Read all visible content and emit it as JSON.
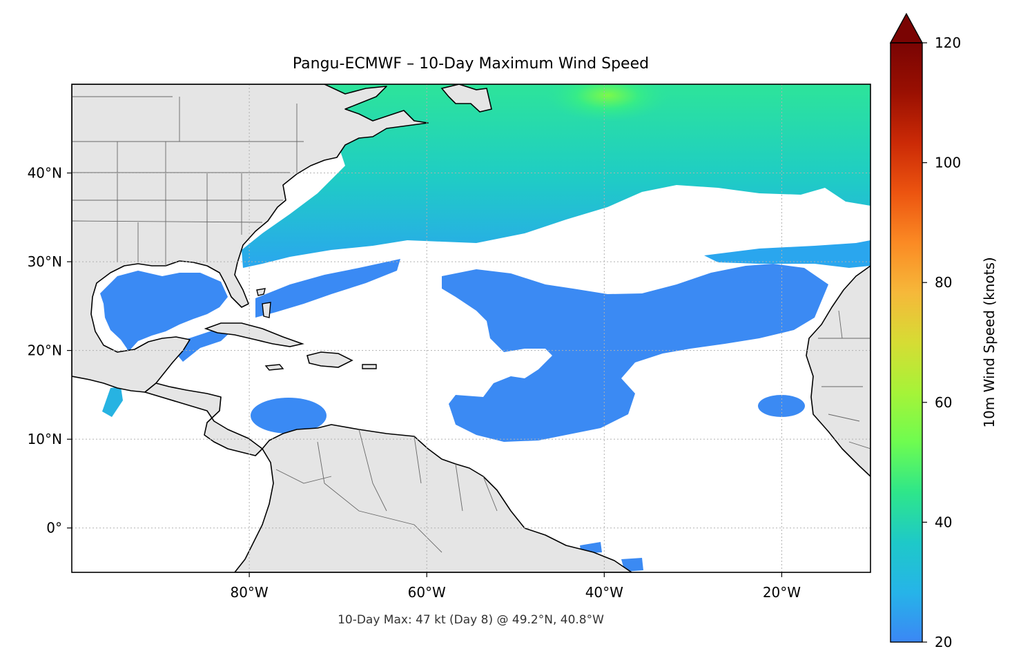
{
  "title": "Pangu-ECMWF – 10-Day Maximum Wind Speed",
  "subtitle": "10-Day Max: 47 kt (Day 8) @ 49.2°N, 40.8°W",
  "map": {
    "lon_range": [
      -100,
      -10
    ],
    "lat_range": [
      -5,
      50
    ],
    "lon_ticks": [
      {
        "value": -80,
        "label": "80°W"
      },
      {
        "value": -60,
        "label": "60°W"
      },
      {
        "value": -40,
        "label": "40°W"
      },
      {
        "value": -20,
        "label": "20°W"
      }
    ],
    "lat_ticks": [
      {
        "value": 0,
        "label": "0°"
      },
      {
        "value": 10,
        "label": "10°N"
      },
      {
        "value": 20,
        "label": "20°N"
      },
      {
        "value": 30,
        "label": "30°N"
      },
      {
        "value": 40,
        "label": "40°N"
      }
    ],
    "gridlines": true,
    "land_color": "#e5e5e5",
    "ocean_color": "#ffffff"
  },
  "colorbar": {
    "label": "10m Wind Speed (knots)",
    "range": [
      20,
      120
    ],
    "extend": "max",
    "ticks": [
      {
        "value": 20,
        "label": "20"
      },
      {
        "value": 40,
        "label": "40"
      },
      {
        "value": 60,
        "label": "60"
      },
      {
        "value": 80,
        "label": "80"
      },
      {
        "value": 100,
        "label": "100"
      },
      {
        "value": 120,
        "label": "120"
      }
    ],
    "colors": [
      "#3b87f5",
      "#26b4e8",
      "#1ec9c8",
      "#2ee68a",
      "#6efc50",
      "#a6f338",
      "#d6dc34",
      "#f6b83a",
      "#fb8a24",
      "#ec5410",
      "#cb2a06",
      "#9a1002",
      "#7a0403"
    ]
  },
  "chart_data": {
    "type": "heatmap",
    "variable": "10m Wind Speed",
    "units": "knots",
    "max_value": 47,
    "max_day": 8,
    "max_lat": 49.2,
    "max_lon": -40.8
  }
}
